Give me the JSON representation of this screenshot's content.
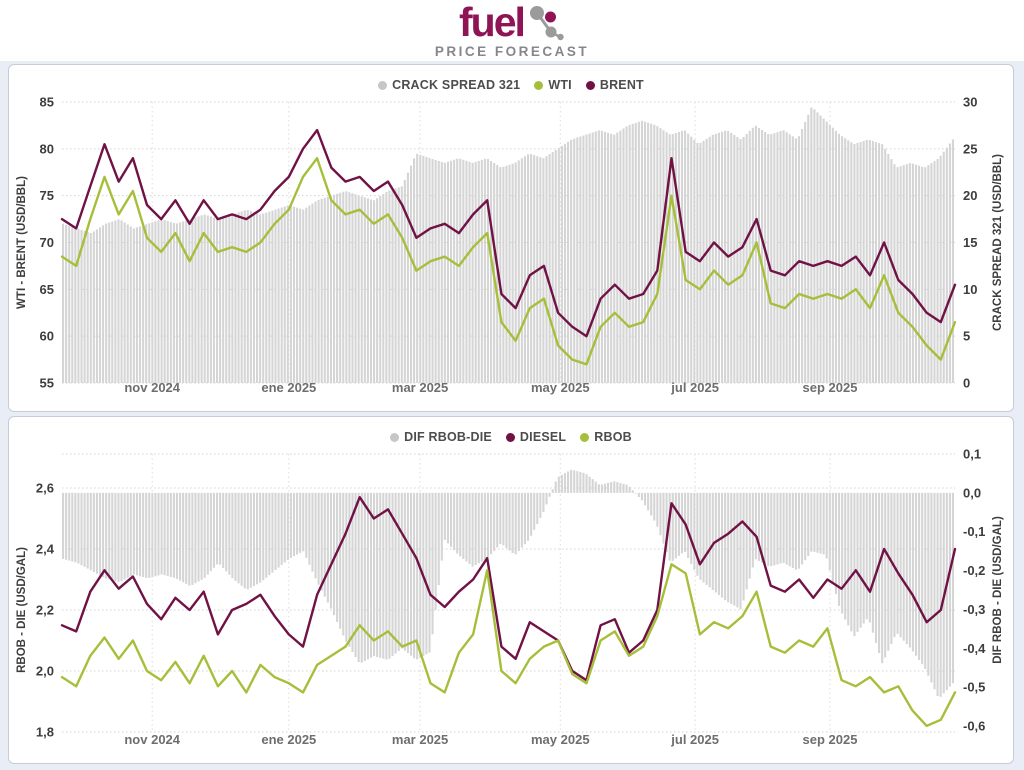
{
  "header": {
    "logo_text": "fuel",
    "subtitle": "PRICE FORECAST"
  },
  "colors": {
    "brand_maroon": "#8f1456",
    "line_maroon": "#701245",
    "line_green": "#a6bf3b",
    "bar_gray": "#d5d5d5",
    "legend_gray": "#c6c6c6",
    "page_background": "#e9edf6"
  },
  "chart_data": [
    {
      "type": "bar",
      "name": "crude-oil-chart",
      "legend": [
        "CRACK SPREAD 321",
        "WTI",
        "BRENT"
      ],
      "left_axis": {
        "title": "WTI - BRENT (USD/BBL)",
        "min": 55,
        "max": 85,
        "ticks": [
          {
            "v": 85,
            "label": "85"
          },
          {
            "v": 80,
            "label": "80"
          },
          {
            "v": 75,
            "label": "75"
          },
          {
            "v": 70,
            "label": "70"
          },
          {
            "v": 65,
            "label": "65"
          },
          {
            "v": 60,
            "label": "60"
          },
          {
            "v": 55,
            "label": "55"
          }
        ]
      },
      "right_axis": {
        "title": "CRACK SPREAD 321 (USD/BBL)",
        "min": 0,
        "max": 30,
        "ticks": [
          {
            "v": 30,
            "label": "30"
          },
          {
            "v": 25,
            "label": "25"
          },
          {
            "v": 20,
            "label": "20"
          },
          {
            "v": 15,
            "label": "15"
          },
          {
            "v": 10,
            "label": "10"
          },
          {
            "v": 5,
            "label": "5"
          },
          {
            "v": 0,
            "label": "0"
          }
        ]
      },
      "x_ticks": [
        {
          "label": "nov 2024",
          "pos": 0.101
        },
        {
          "label": "ene 2025",
          "pos": 0.254
        },
        {
          "label": "mar 2025",
          "pos": 0.401
        },
        {
          "label": "may 2025",
          "pos": 0.558
        },
        {
          "label": "jul 2025",
          "pos": 0.709
        },
        {
          "label": "sep 2025",
          "pos": 0.86
        }
      ],
      "series": [
        {
          "name": "CRACK SPREAD 321",
          "kind": "bar",
          "axis": "right",
          "color": "#d5d5d5",
          "legend_color": "#c6c6c6",
          "values": [
            17,
            16.5,
            16,
            17,
            17.5,
            16.5,
            17,
            17.5,
            17,
            17.5,
            18,
            17.5,
            18,
            18.5,
            18,
            18.5,
            19,
            18.5,
            19.5,
            20,
            20.5,
            20,
            19.5,
            20.5,
            21,
            24.5,
            24,
            23.5,
            24,
            23.5,
            24,
            23,
            23.5,
            24.5,
            24,
            25,
            26,
            26.5,
            27,
            26.5,
            27.5,
            28,
            27.5,
            26.5,
            27,
            25.5,
            26.5,
            27,
            26,
            27.5,
            26.5,
            27,
            26,
            29.5,
            28,
            26.5,
            25.5,
            26,
            25.5,
            23,
            23.5,
            23,
            24,
            26
          ]
        },
        {
          "name": "WTI",
          "kind": "line",
          "axis": "left",
          "color": "#a6bf3b",
          "legend_color": "#a6bf3b",
          "values": [
            68.5,
            67.5,
            72.5,
            77,
            73,
            75.5,
            70.5,
            69,
            71,
            68,
            71,
            69,
            69.5,
            69,
            70,
            72,
            73.5,
            77,
            79,
            74.5,
            73,
            73.5,
            72,
            73,
            70.5,
            67,
            68,
            68.5,
            67.5,
            69.5,
            71,
            61.5,
            59.5,
            63,
            64,
            59,
            57.5,
            57,
            61,
            62.5,
            61,
            61.5,
            64.5,
            75,
            66,
            65,
            67,
            65.5,
            66.5,
            70,
            63.5,
            63,
            64.5,
            64,
            64.5,
            64,
            65,
            63,
            66.5,
            62.5,
            61,
            59,
            57.5,
            61.5
          ]
        },
        {
          "name": "BRENT",
          "kind": "line",
          "axis": "left",
          "color": "#701245",
          "legend_color": "#701245",
          "values": [
            72.5,
            71.5,
            76,
            80.5,
            76.5,
            79,
            74,
            72.5,
            74.5,
            72,
            74.5,
            72.5,
            73,
            72.5,
            73.5,
            75.5,
            77,
            80,
            82,
            78,
            76.5,
            77,
            75.5,
            76.5,
            74,
            70.5,
            71.5,
            72,
            71,
            73,
            74.5,
            64.5,
            63,
            66.5,
            67.5,
            62.5,
            61,
            60,
            64,
            65.5,
            64,
            64.5,
            67,
            79,
            69,
            68,
            70,
            68.5,
            69.5,
            72.5,
            67,
            66.5,
            68,
            67.5,
            68,
            67.5,
            68.5,
            66.5,
            70,
            66,
            64.5,
            62.5,
            61.5,
            65.5
          ]
        }
      ]
    },
    {
      "type": "bar",
      "name": "refined-products-chart",
      "legend": [
        "DIF RBOB-DIE",
        "DIESEL",
        "RBOB"
      ],
      "left_axis": {
        "title": "RBOB - DIE (USD/GAL)",
        "min": 1.8,
        "max": 2.6,
        "ticks": [
          {
            "v": 2.6,
            "label": "2,6"
          },
          {
            "v": 2.4,
            "label": "2,4"
          },
          {
            "v": 2.2,
            "label": "2,2"
          },
          {
            "v": 2.0,
            "label": "2,0"
          },
          {
            "v": 1.8,
            "label": "1,8"
          }
        ]
      },
      "right_axis": {
        "title": "DIF RBOB - DIE (USD/GAL)",
        "min": -0.6,
        "max": 0.1,
        "ticks": [
          {
            "v": 0.1,
            "label": "0,1"
          },
          {
            "v": 0.0,
            "label": "0,0"
          },
          {
            "v": -0.1,
            "label": "-0,1"
          },
          {
            "v": -0.2,
            "label": "-0,2"
          },
          {
            "v": -0.3,
            "label": "-0,3"
          },
          {
            "v": -0.4,
            "label": "-0,4"
          },
          {
            "v": -0.5,
            "label": "-0,5"
          },
          {
            "v": -0.6,
            "label": "-0,6"
          }
        ]
      },
      "x_ticks": [
        {
          "label": "nov 2024",
          "pos": 0.101
        },
        {
          "label": "ene 2025",
          "pos": 0.254
        },
        {
          "label": "mar 2025",
          "pos": 0.401
        },
        {
          "label": "may 2025",
          "pos": 0.558
        },
        {
          "label": "jul 2025",
          "pos": 0.709
        },
        {
          "label": "sep 2025",
          "pos": 0.86
        }
      ],
      "series": [
        {
          "name": "DIF RBOB-DIE",
          "kind": "bar",
          "axis": "right",
          "color": "#d5d5d5",
          "legend_color": "#c6c6c6",
          "values": [
            -0.17,
            -0.18,
            -0.2,
            -0.22,
            -0.23,
            -0.21,
            -0.22,
            -0.21,
            -0.22,
            -0.24,
            -0.22,
            -0.18,
            -0.22,
            -0.25,
            -0.23,
            -0.2,
            -0.17,
            -0.15,
            -0.23,
            -0.3,
            -0.38,
            -0.44,
            -0.42,
            -0.43,
            -0.4,
            -0.43,
            -0.41,
            -0.12,
            -0.16,
            -0.19,
            -0.17,
            -0.13,
            -0.16,
            -0.12,
            -0.05,
            0.04,
            0.06,
            0.05,
            0.02,
            0.03,
            0.02,
            -0.02,
            -0.08,
            -0.18,
            -0.15,
            -0.22,
            -0.25,
            -0.28,
            -0.3,
            -0.17,
            -0.19,
            -0.18,
            -0.2,
            -0.15,
            -0.16,
            -0.3,
            -0.37,
            -0.32,
            -0.44,
            -0.36,
            -0.4,
            -0.45,
            -0.53,
            -0.49
          ]
        },
        {
          "name": "DIESEL",
          "kind": "line",
          "axis": "left",
          "color": "#701245",
          "legend_color": "#701245",
          "values": [
            2.15,
            2.13,
            2.26,
            2.33,
            2.27,
            2.31,
            2.22,
            2.17,
            2.24,
            2.2,
            2.26,
            2.12,
            2.2,
            2.22,
            2.25,
            2.18,
            2.12,
            2.08,
            2.25,
            2.35,
            2.45,
            2.57,
            2.5,
            2.53,
            2.45,
            2.37,
            2.25,
            2.21,
            2.26,
            2.3,
            2.37,
            2.08,
            2.04,
            2.16,
            2.13,
            2.1,
            2.0,
            1.97,
            2.15,
            2.17,
            2.06,
            2.1,
            2.2,
            2.55,
            2.48,
            2.35,
            2.42,
            2.45,
            2.49,
            2.44,
            2.28,
            2.26,
            2.3,
            2.24,
            2.3,
            2.27,
            2.33,
            2.26,
            2.4,
            2.32,
            2.25,
            2.16,
            2.2,
            2.4
          ]
        },
        {
          "name": "RBOB",
          "kind": "line",
          "axis": "left",
          "color": "#a6bf3b",
          "legend_color": "#a6bf3b",
          "values": [
            1.98,
            1.95,
            2.05,
            2.11,
            2.04,
            2.1,
            2.0,
            1.97,
            2.03,
            1.96,
            2.05,
            1.95,
            2.0,
            1.93,
            2.02,
            1.98,
            1.96,
            1.93,
            2.02,
            2.05,
            2.08,
            2.15,
            2.1,
            2.13,
            2.08,
            2.1,
            1.96,
            1.93,
            2.06,
            2.12,
            2.33,
            2.0,
            1.96,
            2.04,
            2.08,
            2.1,
            1.99,
            1.96,
            2.1,
            2.13,
            2.05,
            2.08,
            2.18,
            2.35,
            2.32,
            2.12,
            2.16,
            2.14,
            2.18,
            2.26,
            2.08,
            2.06,
            2.1,
            2.08,
            2.14,
            1.97,
            1.95,
            1.98,
            1.93,
            1.95,
            1.87,
            1.82,
            1.84,
            1.93
          ]
        }
      ]
    }
  ]
}
